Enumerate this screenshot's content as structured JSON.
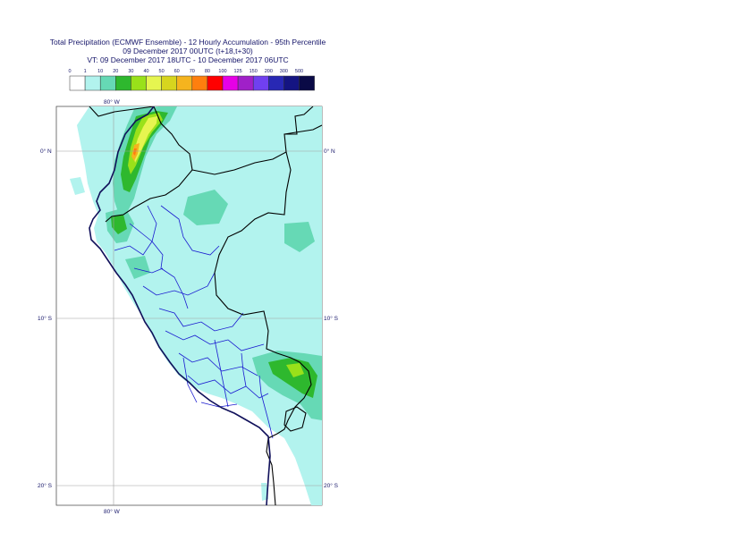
{
  "title": {
    "line1": "Total Precipitation (ECMWF Ensemble) - 12 Hourly Accumulation - 95th Percentile",
    "line2": "09 December 2017 00UTC (t+18,t+30)",
    "line3": "VT: 09 December 2017 18UTC - 10 December 2017 06UTC"
  },
  "legend": {
    "thresholds": [
      "0",
      "1",
      "10",
      "20",
      "30",
      "40",
      "50",
      "60",
      "70",
      "80",
      "100",
      "125",
      "150",
      "200",
      "300",
      "500"
    ],
    "colors": [
      "#ffffff",
      "#b2f3ee",
      "#66d9b5",
      "#2eb82e",
      "#99e11a",
      "#e6f550",
      "#d7d51e",
      "#f5b41e",
      "#ff7f0e",
      "#ff0000",
      "#e600e6",
      "#a020c8",
      "#7040f0",
      "#2828b4",
      "#141482",
      "#0a0a46"
    ]
  },
  "map": {
    "lon_labels": {
      "top": "80° W",
      "bottom": "80° W"
    },
    "lat_labels": [
      "0° N",
      "10° S",
      "20° S"
    ],
    "colors": {
      "land_base": "#ffffff",
      "precip_1": "#b2f3ee",
      "precip_10": "#66d9b5",
      "precip_20": "#2eb82e",
      "precip_30": "#99e11a",
      "precip_40": "#e6f550",
      "precip_50": "#d7d51e",
      "precip_60": "#f5b41e",
      "precip_70": "#ff7f0e",
      "country_border": "#000000",
      "coastline": "#10105a",
      "admin_border": "#1a1ad0",
      "grid": "#a0a0a0"
    }
  }
}
